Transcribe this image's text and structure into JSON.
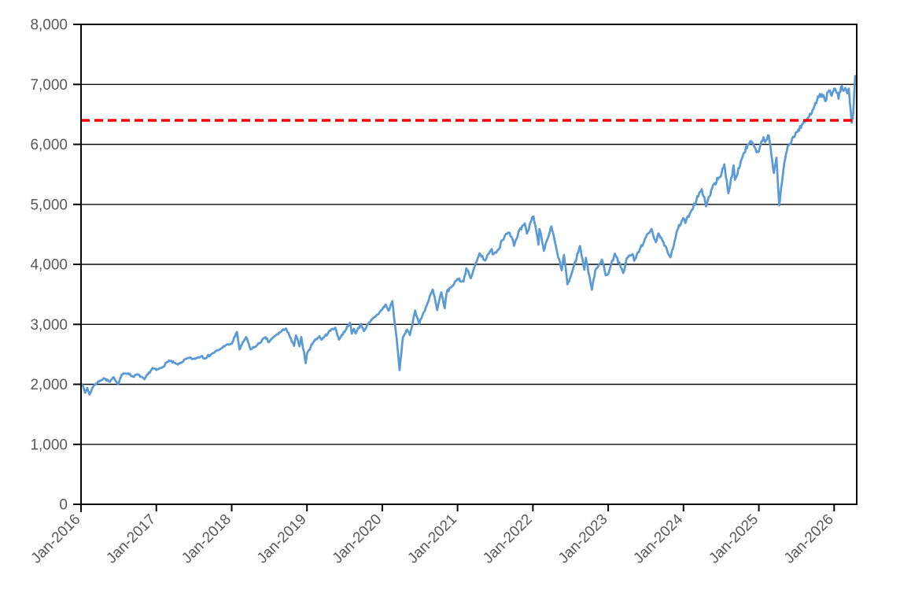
{
  "chart_data": {
    "type": "line",
    "title": "",
    "xlabel": "",
    "ylabel": "",
    "grid": "horizontal",
    "x_axis": {
      "tick_labels": [
        "Jan-2016",
        "Jan-2017",
        "Jan-2018",
        "Jan-2019",
        "Jan-2020",
        "Jan-2021",
        "Jan-2022",
        "Jan-2023",
        "Jan-2024",
        "Jan-2025",
        "Jan-2026"
      ],
      "tick_month_positions": [
        0,
        12,
        24,
        36,
        48,
        60,
        72,
        84,
        96,
        108,
        120
      ],
      "domain_months": [
        0,
        123.6
      ],
      "label_rotation_deg": -45
    },
    "y_axis": {
      "min": 0,
      "max": 8000,
      "tick_step": 1000,
      "tick_labels": [
        "0",
        "1,000",
        "2,000",
        "3,000",
        "4,000",
        "5,000",
        "6,000",
        "7,000",
        "8,000"
      ]
    },
    "reference_line": {
      "name": "red-dashed-threshold",
      "value": 6400,
      "color": "#FF0000",
      "dash": [
        11,
        6
      ],
      "width": 3.6
    },
    "series": [
      {
        "name": "index-level",
        "color": "#5B9BD5",
        "width": 2.75,
        "points": [
          [
            0.0,
            2012
          ],
          [
            0.2,
            1990
          ],
          [
            0.65,
            1859
          ],
          [
            1.0,
            1940
          ],
          [
            1.35,
            1829
          ],
          [
            2.0,
            1978
          ],
          [
            3.0,
            2060
          ],
          [
            3.6,
            2102
          ],
          [
            4.6,
            2040
          ],
          [
            5.2,
            2119
          ],
          [
            5.9,
            2001
          ],
          [
            6.5,
            2164
          ],
          [
            7.5,
            2184
          ],
          [
            8.3,
            2126
          ],
          [
            9.0,
            2168
          ],
          [
            10.1,
            2085
          ],
          [
            11.4,
            2271
          ],
          [
            12.0,
            2239
          ],
          [
            12.9,
            2279
          ],
          [
            14.0,
            2396
          ],
          [
            15.4,
            2329
          ],
          [
            17.0,
            2439
          ],
          [
            18.0,
            2423
          ],
          [
            19.3,
            2474
          ],
          [
            19.6,
            2426
          ],
          [
            21.0,
            2519
          ],
          [
            22.0,
            2575
          ],
          [
            23.0,
            2648
          ],
          [
            24.0,
            2674
          ],
          [
            24.85,
            2873
          ],
          [
            25.25,
            2581
          ],
          [
            25.9,
            2714
          ],
          [
            26.3,
            2787
          ],
          [
            27.05,
            2582
          ],
          [
            28.0,
            2648
          ],
          [
            29.4,
            2787
          ],
          [
            29.9,
            2700
          ],
          [
            31.0,
            2816
          ],
          [
            32.65,
            2931
          ],
          [
            33.3,
            2785
          ],
          [
            33.95,
            2641
          ],
          [
            34.25,
            2814
          ],
          [
            34.8,
            2633
          ],
          [
            35.1,
            2790
          ],
          [
            35.8,
            2351
          ],
          [
            36.0,
            2507
          ],
          [
            37.0,
            2704
          ],
          [
            38.0,
            2803
          ],
          [
            38.3,
            2743
          ],
          [
            40.0,
            2924
          ],
          [
            40.5,
            2946
          ],
          [
            41.1,
            2744
          ],
          [
            42.85,
            3026
          ],
          [
            43.15,
            2845
          ],
          [
            43.5,
            2924
          ],
          [
            43.75,
            2847
          ],
          [
            44.6,
            3007
          ],
          [
            45.05,
            2888
          ],
          [
            46.0,
            3038
          ],
          [
            47.0,
            3141
          ],
          [
            47.9,
            3240
          ],
          [
            48.55,
            3330
          ],
          [
            49.0,
            3226
          ],
          [
            49.6,
            3386
          ],
          [
            50.3,
            2750
          ],
          [
            50.75,
            2237
          ],
          [
            51.3,
            2790
          ],
          [
            51.95,
            2912
          ],
          [
            52.4,
            2820
          ],
          [
            53.25,
            3232
          ],
          [
            53.85,
            3009
          ],
          [
            55.2,
            3349
          ],
          [
            56.05,
            3581
          ],
          [
            56.75,
            3237
          ],
          [
            57.4,
            3534
          ],
          [
            57.95,
            3270
          ],
          [
            58.3,
            3550
          ],
          [
            59.0,
            3622
          ],
          [
            60.0,
            3756
          ],
          [
            60.95,
            3714
          ],
          [
            61.4,
            3935
          ],
          [
            62.1,
            3768
          ],
          [
            63.5,
            4185
          ],
          [
            64.4,
            4063
          ],
          [
            65.45,
            4255
          ],
          [
            65.6,
            4166
          ],
          [
            66.6,
            4258
          ],
          [
            67.0,
            4395
          ],
          [
            68.0,
            4523
          ],
          [
            68.6,
            4458
          ],
          [
            69.0,
            4308
          ],
          [
            69.85,
            4575
          ],
          [
            70.7,
            4683
          ],
          [
            71.05,
            4513
          ],
          [
            71.9,
            4791
          ],
          [
            72.1,
            4797
          ],
          [
            72.9,
            4327
          ],
          [
            73.05,
            4589
          ],
          [
            73.75,
            4226
          ],
          [
            74.95,
            4632
          ],
          [
            75.9,
            4184
          ],
          [
            76.6,
            3900
          ],
          [
            76.95,
            4158
          ],
          [
            77.5,
            3667
          ],
          [
            78.0,
            3785
          ],
          [
            79.5,
            4305
          ],
          [
            80.2,
            3908
          ],
          [
            80.45,
            4110
          ],
          [
            81.4,
            3577
          ],
          [
            81.95,
            3901
          ],
          [
            83.0,
            4080
          ],
          [
            83.6,
            3818
          ],
          [
            84.0,
            3840
          ],
          [
            85.05,
            4180
          ],
          [
            86.4,
            3856
          ],
          [
            87.0,
            4109
          ],
          [
            87.9,
            4169
          ],
          [
            88.15,
            4061
          ],
          [
            90.0,
            4450
          ],
          [
            90.9,
            4589
          ],
          [
            91.6,
            4370
          ],
          [
            92.0,
            4516
          ],
          [
            93.9,
            4117
          ],
          [
            95.0,
            4568
          ],
          [
            95.95,
            4770
          ],
          [
            96.3,
            4689
          ],
          [
            97.0,
            4846
          ],
          [
            98.9,
            5254
          ],
          [
            99.6,
            4967
          ],
          [
            100.7,
            5321
          ],
          [
            101.9,
            5460
          ],
          [
            102.5,
            5667
          ],
          [
            103.15,
            5186
          ],
          [
            104.0,
            5648
          ],
          [
            104.2,
            5408
          ],
          [
            105.55,
            5842
          ],
          [
            106.35,
            6001
          ],
          [
            106.95,
            6032
          ],
          [
            107.6,
            5872
          ],
          [
            108.0,
            5882
          ],
          [
            108.75,
            6118
          ],
          [
            109.0,
            6041
          ],
          [
            109.6,
            6147
          ],
          [
            110.4,
            5521
          ],
          [
            110.8,
            5777
          ],
          [
            111.25,
            4983
          ],
          [
            112.05,
            5687
          ],
          [
            112.6,
            5963
          ],
          [
            114.0,
            6205
          ],
          [
            115.0,
            6339
          ],
          [
            116.0,
            6460
          ],
          [
            117.0,
            6688
          ],
          [
            118.0,
            6840
          ],
          [
            118.6,
            6720
          ],
          [
            119.2,
            6900
          ],
          [
            119.6,
            6812
          ],
          [
            120.0,
            6930
          ],
          [
            120.4,
            6860
          ],
          [
            120.7,
            6760
          ],
          [
            121.1,
            6960
          ],
          [
            121.5,
            6890
          ],
          [
            121.8,
            6940
          ],
          [
            122.1,
            6850
          ],
          [
            122.35,
            6930
          ],
          [
            122.8,
            6360
          ],
          [
            123.05,
            6520
          ],
          [
            123.35,
            7140
          ]
        ]
      }
    ]
  },
  "style": {
    "background": "#FFFFFF",
    "axis_color": "#000000",
    "grid_color": "#0D0D0D",
    "tick_label_color": "#595959",
    "tick_label_font_px": 19
  }
}
